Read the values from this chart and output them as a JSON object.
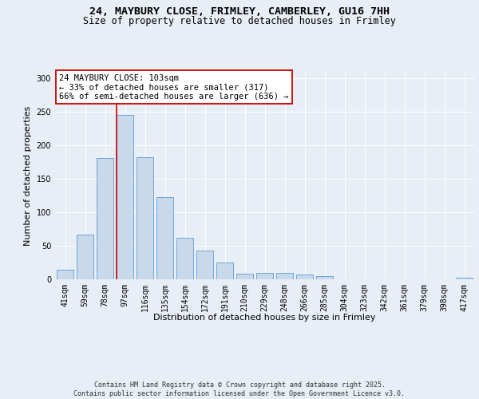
{
  "title_line1": "24, MAYBURY CLOSE, FRIMLEY, CAMBERLEY, GU16 7HH",
  "title_line2": "Size of property relative to detached houses in Frimley",
  "xlabel": "Distribution of detached houses by size in Frimley",
  "ylabel": "Number of detached properties",
  "bar_labels": [
    "41sqm",
    "59sqm",
    "78sqm",
    "97sqm",
    "116sqm",
    "135sqm",
    "154sqm",
    "172sqm",
    "191sqm",
    "210sqm",
    "229sqm",
    "248sqm",
    "266sqm",
    "285sqm",
    "304sqm",
    "323sqm",
    "342sqm",
    "361sqm",
    "379sqm",
    "398sqm",
    "417sqm"
  ],
  "bar_values": [
    14,
    67,
    181,
    246,
    183,
    123,
    62,
    43,
    25,
    8,
    9,
    9,
    7,
    5,
    0,
    0,
    0,
    0,
    0,
    0,
    2
  ],
  "bar_color": "#c9d9ec",
  "bar_edge_color": "#5b9bd5",
  "vline_color": "#cc0000",
  "vline_index": 3,
  "annotation_text": "24 MAYBURY CLOSE: 103sqm\n← 33% of detached houses are smaller (317)\n66% of semi-detached houses are larger (636) →",
  "annotation_box_facecolor": "#ffffff",
  "annotation_box_edgecolor": "#cc0000",
  "ylim": [
    0,
    310
  ],
  "yticks": [
    0,
    50,
    100,
    150,
    200,
    250,
    300
  ],
  "bg_color": "#e8eef5",
  "grid_color": "#ffffff",
  "footer_text": "Contains HM Land Registry data © Crown copyright and database right 2025.\nContains public sector information licensed under the Open Government Licence v3.0.",
  "title_fontsize": 9.5,
  "subtitle_fontsize": 8.5,
  "ylabel_fontsize": 8,
  "xlabel_fontsize": 8,
  "tick_fontsize": 7,
  "ann_fontsize": 7.5,
  "footer_fontsize": 6
}
